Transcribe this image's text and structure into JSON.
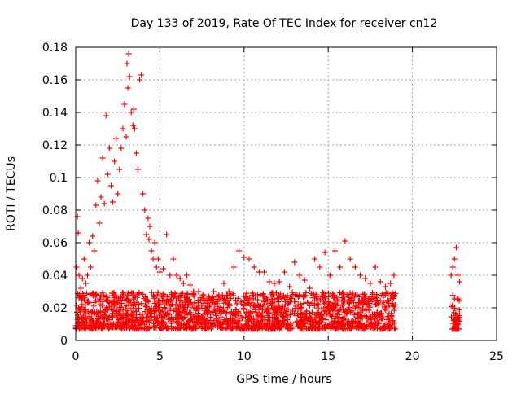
{
  "chart_data": {
    "type": "scatter",
    "title": "Day 133 of 2019, Rate Of TEC Index for receiver cn12",
    "xlabel": "GPS time / hours",
    "ylabel": "ROTI / TECUs",
    "xlim": [
      0,
      25
    ],
    "ylim": [
      0,
      0.18
    ],
    "xticks": [
      "0",
      "5",
      "10",
      "15",
      "20",
      "25"
    ],
    "yticks": [
      "0",
      "0.02",
      "0.04",
      "0.06",
      "0.08",
      "0.1",
      "0.12",
      "0.14",
      "0.16",
      "0.18"
    ],
    "grid": true,
    "marker": "+",
    "color": "#ff0000",
    "series": [
      {
        "name": "ROTI",
        "x": [
          0.05,
          0.1,
          0.15,
          0.2,
          0.3,
          0.4,
          0.5,
          0.6,
          0.7,
          0.8,
          0.9,
          1.0,
          1.1,
          1.2,
          1.3,
          1.4,
          1.5,
          1.6,
          1.7,
          1.8,
          1.9,
          2.0,
          2.1,
          2.2,
          2.3,
          2.4,
          2.5,
          2.6,
          2.7,
          2.8,
          2.9,
          3.0,
          3.05,
          3.1,
          3.15,
          3.2,
          3.3,
          3.4,
          3.45,
          3.5,
          3.6,
          3.7,
          3.8,
          3.9,
          4.0,
          4.1,
          4.2,
          4.3,
          4.35,
          4.4,
          4.5,
          4.6,
          4.7,
          4.8,
          4.9,
          5.0,
          5.2,
          5.4,
          5.6,
          5.8,
          6.0,
          6.2,
          6.4,
          6.6,
          6.8,
          7.0,
          7.3,
          7.6,
          7.9,
          8.2,
          8.5,
          8.8,
          9.1,
          9.4,
          9.7,
          10.0,
          10.3,
          10.6,
          10.9,
          11.2,
          11.5,
          11.8,
          12.1,
          12.4,
          12.7,
          13.0,
          13.3,
          13.6,
          13.9,
          14.2,
          14.5,
          14.8,
          15.1,
          15.4,
          15.7,
          16.0,
          16.3,
          16.6,
          16.9,
          17.2,
          17.5,
          17.8,
          18.1,
          18.4,
          18.7,
          18.9,
          22.3,
          22.4,
          22.5,
          22.6,
          22.7,
          22.8
        ],
        "y": [
          0.045,
          0.076,
          0.066,
          0.04,
          0.032,
          0.038,
          0.05,
          0.035,
          0.04,
          0.06,
          0.045,
          0.064,
          0.055,
          0.083,
          0.098,
          0.072,
          0.088,
          0.112,
          0.084,
          0.138,
          0.102,
          0.118,
          0.095,
          0.085,
          0.11,
          0.124,
          0.09,
          0.105,
          0.118,
          0.13,
          0.145,
          0.125,
          0.17,
          0.155,
          0.176,
          0.162,
          0.14,
          0.132,
          0.142,
          0.13,
          0.115,
          0.105,
          0.16,
          0.163,
          0.09,
          0.08,
          0.065,
          0.075,
          0.062,
          0.07,
          0.055,
          0.05,
          0.06,
          0.045,
          0.05,
          0.042,
          0.044,
          0.065,
          0.04,
          0.05,
          0.04,
          0.038,
          0.035,
          0.04,
          0.034,
          0.03,
          0.03,
          0.028,
          0.027,
          0.03,
          0.028,
          0.035,
          0.03,
          0.045,
          0.055,
          0.051,
          0.05,
          0.045,
          0.042,
          0.042,
          0.036,
          0.035,
          0.036,
          0.042,
          0.033,
          0.048,
          0.04,
          0.037,
          0.032,
          0.05,
          0.045,
          0.054,
          0.04,
          0.055,
          0.045,
          0.061,
          0.05,
          0.045,
          0.04,
          0.038,
          0.035,
          0.045,
          0.036,
          0.033,
          0.035,
          0.04,
          0.04,
          0.045,
          0.05,
          0.057,
          0.04,
          0.036
        ]
      }
    ]
  }
}
